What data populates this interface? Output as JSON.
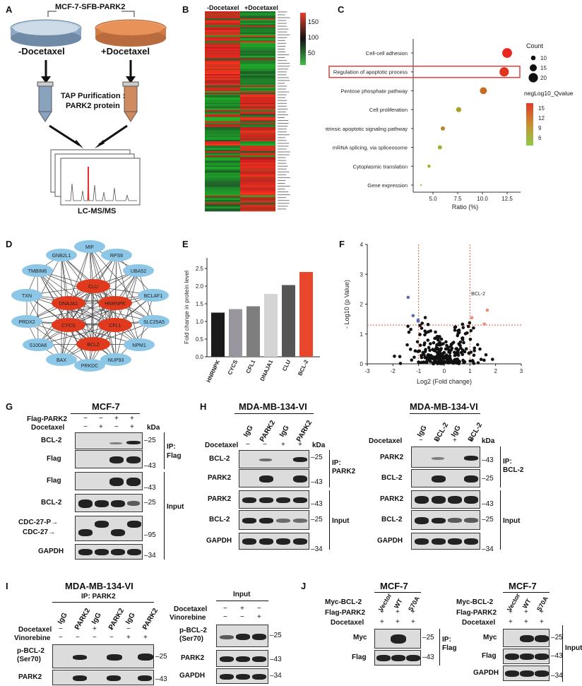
{
  "panels": {
    "A": {
      "letter": "A",
      "top": "MCF-7-SFB-PARK2",
      "left_dish": "-Docetaxel",
      "right_dish": "+Docetaxel",
      "tap": "TAP Purification :",
      "tap2": "PARK2 protein",
      "ms": "LC-MS/MS"
    },
    "B": {
      "letter": "B",
      "col1": "-Docetaxel",
      "col2": "+Docetaxel",
      "scale": [
        "150",
        "100",
        "50"
      ]
    },
    "C": {
      "letter": "C",
      "terms": [
        "Cell-cell adhesion",
        "Regulation of apoptotic process",
        "Pentose phosphate pathway",
        "Cell proliferation",
        "Intrinsic apoptotic signaling pathway",
        "mRNA splicing, via spliceosome",
        "Cytoplasmic translation",
        "Gene expression"
      ],
      "xlabel": "Ratio (%)",
      "xticks": [
        "5.0",
        "7.5",
        "10.0",
        "12.5"
      ],
      "count_title": "Count",
      "count_vals": [
        "10",
        "15",
        "20"
      ],
      "q_title": "negLog10_Qvalue",
      "q_vals": [
        "15",
        "12",
        "9",
        "6"
      ]
    },
    "D": {
      "letter": "D",
      "blue": [
        "MIF",
        "GNB2L1",
        "RPS6",
        "TMBIM6",
        "UBA52",
        "TXN",
        "BCLAF1",
        "PRDX2",
        "SLC25A5",
        "S100A6",
        "NPM1",
        "BAX",
        "NUP93",
        "PRKDC"
      ],
      "red": [
        "CLU",
        "DNAJA1",
        "HNRNPK",
        "CYCS",
        "CFL1",
        "BCL2"
      ]
    },
    "E": {
      "letter": "E",
      "ylabel": "Fold change in protein level",
      "yticks": [
        "0.0",
        "0.5",
        "1.0",
        "1.5",
        "2.0",
        "2.5"
      ]
    },
    "F": {
      "letter": "F",
      "ylabel": "- Log10 (p Value)",
      "xlabel": "Log2 (Fold change)",
      "xticks": [
        "-3",
        "-2",
        "-1",
        "0",
        "1",
        "2",
        "3"
      ],
      "yticks": [
        "0",
        "1",
        "2",
        "3",
        "4"
      ],
      "annot": "BCL-2"
    },
    "G": {
      "letter": "G",
      "title": "MCF-7",
      "row1": "Flag-PARK2",
      "row2": "Docetaxel",
      "kda": "kDa",
      "bands": [
        "BCL-2",
        "Flag",
        "Flag",
        "BCL-2",
        "CDC-27-P",
        "CDC-27",
        "GAPDH"
      ],
      "mw": [
        "25",
        "43",
        "43",
        "25",
        "95",
        "34"
      ],
      "ip": "IP:",
      "ipt": "Flag",
      "input": "Input"
    },
    "H1": {
      "letter": "H",
      "title": "MDA-MB-134-VI",
      "lanes": [
        "IgG",
        "PARK2",
        "IgG",
        "PARK2"
      ],
      "doc": "Docetaxel",
      "kda": "kDa",
      "bands": [
        "BCL-2",
        "PARK2",
        "PARK2",
        "BCL-2",
        "GAPDH"
      ],
      "mw": [
        "25",
        "43",
        "43",
        "25",
        "34"
      ],
      "ip": "IP:",
      "ipt": "PARK2",
      "input": "Input"
    },
    "H2": {
      "title": "MDA-MB-134-VI",
      "lanes": [
        "IgG",
        "BCL-2",
        "IgG",
        "BCL-2"
      ],
      "doc": "Docetaxel",
      "kda": "kDa",
      "bands": [
        "PARK2",
        "BCL-2",
        "PARK2",
        "BCL-2",
        "GAPDH"
      ],
      "mw": [
        "43",
        "25",
        "43",
        "25",
        "34"
      ],
      "ip": "IP:",
      "ipt": "BCL-2",
      "input": "Input"
    },
    "I": {
      "letter": "I",
      "title": "MDA-MB-134-VI",
      "ip": "IP: PARK2",
      "lanes": [
        "IgG",
        "PARK2",
        "IgG",
        "PARK2",
        "IgG",
        "PARK2"
      ],
      "doc": "Docetaxel",
      "vin": "Vinorebine",
      "bands": [
        "p-BCL-2",
        "(Ser70)",
        "PARK2"
      ],
      "mw": [
        "25",
        "43"
      ],
      "input_title": "Input",
      "ibands": [
        "p-BCL-2",
        "(Ser70)",
        "PARK2",
        "GAPDH"
      ],
      "imw": [
        "25",
        "43",
        "34"
      ]
    },
    "J": {
      "letter": "J",
      "title": "MCF-7",
      "myc": "Myc-BCL-2",
      "flag": "Flag-PARK2",
      "doc": "Docetaxel",
      "lanes": [
        "Vector",
        "WT",
        "S70A"
      ],
      "bands": [
        "Myc",
        "Flag"
      ],
      "mw": [
        "25",
        "43"
      ],
      "ip": "IP:",
      "ipt": "Flag",
      "title2": "MCF-7",
      "ibands": [
        "Myc",
        "Flag",
        "GAPDH"
      ],
      "imw": [
        "25",
        "43",
        "34"
      ],
      "input": "Input"
    }
  },
  "chart_data": [
    {
      "type": "scatter",
      "panel": "C",
      "xlabel": "Ratio (%)",
      "y_categories": [
        "Cell-cell adhesion",
        "Regulation of apoptotic process",
        "Pentose phosphate pathway",
        "Cell proliferation",
        "Intrinsic apoptotic signaling pathway",
        "mRNA splicing, via spliceosome",
        "Cytoplasmic translation",
        "Gene expression"
      ],
      "ratio": [
        12.5,
        12.2,
        10.1,
        7.6,
        6.0,
        5.7,
        4.6,
        3.8
      ],
      "count": [
        21,
        20,
        15,
        11,
        9,
        9,
        7,
        3
      ],
      "qvalue": [
        17,
        16,
        12,
        8,
        10,
        7,
        6,
        5
      ],
      "xlim": [
        3,
        13.5
      ]
    },
    {
      "type": "bar",
      "panel": "E",
      "categories": [
        "HNRNPK",
        "CYCS",
        "CFL1",
        "DNAJA1",
        "CLU",
        "BCL-2"
      ],
      "values": [
        1.25,
        1.35,
        1.43,
        1.78,
        2.03,
        2.4
      ],
      "colors": [
        "#1a1a1a",
        "#9a96a0",
        "#7e7e7e",
        "#d4d4d4",
        "#555555",
        "#e8472b"
      ],
      "ylabel": "Fold change in protein level",
      "ylim": [
        0,
        2.8
      ]
    },
    {
      "type": "scatter",
      "panel": "F",
      "xlabel": "Log2 (Fold change)",
      "ylabel": "- Log10 (p Value)",
      "xlim": [
        -3,
        3
      ],
      "ylim": [
        0,
        4
      ],
      "thresholds": {
        "x": [
          -1,
          1
        ],
        "y": 1.3
      }
    }
  ]
}
